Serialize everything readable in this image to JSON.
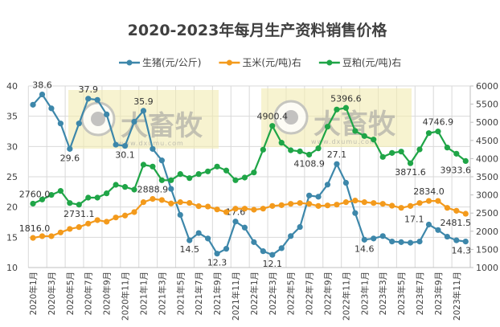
{
  "chart_data": {
    "type": "line",
    "title": "2020-2023年每月生产资料销售价格",
    "x": [
      "2020年1月",
      "2020年2月",
      "2020年3月",
      "2020年4月",
      "2020年5月",
      "2020年6月",
      "2020年7月",
      "2020年8月",
      "2020年9月",
      "2020年10月",
      "2020年11月",
      "2020年12月",
      "2021年1月",
      "2021年2月",
      "2021年3月",
      "2021年4月",
      "2021年5月",
      "2021年6月",
      "2021年7月",
      "2021年8月",
      "2021年9月",
      "2021年10月",
      "2021年11月",
      "2021年12月",
      "2022年1月",
      "2022年2月",
      "2022年3月",
      "2022年4月",
      "2022年5月",
      "2022年6月",
      "2022年7月",
      "2022年8月",
      "2022年9月",
      "2022年10月",
      "2022年11月",
      "2022年12月",
      "2023年1月",
      "2023年2月",
      "2023年3月",
      "2023年4月",
      "2023年5月",
      "2023年6月",
      "2023年7月",
      "2023年8月",
      "2023年9月",
      "2023年10月",
      "2023年11月",
      "2023年12月"
    ],
    "x_tick_step": 2,
    "left_axis": {
      "ylim": [
        10,
        40
      ],
      "ticks": [
        10,
        15,
        20,
        25,
        30,
        35,
        40
      ]
    },
    "right_axis": {
      "ylim": [
        1000,
        6000
      ],
      "ticks": [
        1000,
        1500,
        2000,
        2500,
        3000,
        3500,
        4000,
        4500,
        5000,
        5500,
        6000
      ]
    },
    "grid": true,
    "legend": "top",
    "series": [
      {
        "name": "生猪(元/公斤)",
        "axis": "left",
        "color": "#3D87AA",
        "values": [
          36.9,
          38.6,
          36.3,
          33.8,
          29.6,
          33.8,
          37.9,
          37.7,
          35.3,
          30.3,
          30.1,
          34.1,
          35.9,
          29.6,
          27.7,
          23.0,
          18.7,
          14.5,
          15.7,
          14.8,
          12.3,
          13.1,
          17.6,
          16.6,
          14.2,
          12.7,
          12.1,
          13.2,
          15.2,
          16.7,
          21.9,
          21.7,
          23.7,
          27.1,
          24.0,
          19.0,
          14.6,
          14.8,
          15.2,
          14.3,
          14.2,
          14.1,
          14.3,
          17.1,
          16.2,
          15.1,
          14.5,
          14.3
        ],
        "labels": [
          {
            "i": 1,
            "text": "38.6",
            "pos": "above"
          },
          {
            "i": 4,
            "text": "29.6",
            "pos": "below"
          },
          {
            "i": 6,
            "text": "37.9",
            "pos": "above"
          },
          {
            "i": 10,
            "text": "30.1",
            "pos": "below"
          },
          {
            "i": 12,
            "text": "35.9",
            "pos": "above"
          },
          {
            "i": 17,
            "text": "14.5",
            "pos": "below"
          },
          {
            "i": 20,
            "text": "12.3",
            "pos": "below"
          },
          {
            "i": 22,
            "text": "17.6",
            "pos": "above"
          },
          {
            "i": 26,
            "text": "12.1",
            "pos": "below"
          },
          {
            "i": 33,
            "text": "27.1",
            "pos": "above"
          },
          {
            "i": 36,
            "text": "14.6",
            "pos": "below"
          },
          {
            "i": 43,
            "text": "17.1",
            "pos": "left"
          },
          {
            "i": 47,
            "text": "14.3",
            "pos": "below"
          }
        ]
      },
      {
        "name": "玉米(元/吨)右",
        "axis": "right",
        "color": "#F39A1C",
        "values": [
          1816.0,
          1864,
          1864,
          1967,
          2063,
          2114,
          2210,
          2306,
          2262,
          2379,
          2432,
          2527,
          2800,
          2888.9,
          2860,
          2764,
          2800,
          2780,
          2690,
          2680,
          2600,
          2527,
          2620,
          2622,
          2593,
          2622,
          2696,
          2718,
          2755,
          2777,
          2755,
          2696,
          2711,
          2733,
          2800,
          2844,
          2800,
          2777,
          2755,
          2703,
          2644,
          2696,
          2777,
          2834.0,
          2834,
          2644,
          2563,
          2481.5
        ],
        "labels": [
          {
            "i": 0,
            "text": "1816.0",
            "pos": "above"
          },
          {
            "i": 13,
            "text": "2888.9",
            "pos": "above"
          },
          {
            "i": 43,
            "text": "2834.0",
            "pos": "above"
          },
          {
            "i": 47,
            "text": "2481.5",
            "pos": "below"
          }
        ]
      },
      {
        "name": "豆粕(元/吨)右",
        "axis": "right",
        "color": "#1FA547",
        "values": [
          2760.0,
          2874,
          3000,
          3110,
          2777,
          2731.1,
          2925,
          2925,
          3043,
          3279,
          3220,
          3146,
          3832,
          3781,
          3405,
          3405,
          3574,
          3463,
          3574,
          3648,
          3781,
          3671,
          3405,
          3478,
          3618,
          4245,
          4900.4,
          4437,
          4230,
          4200,
          4108.9,
          4282,
          4879,
          5351,
          5396.6,
          4761,
          4621,
          4525,
          4046,
          4156,
          4193,
          3871.6,
          4252,
          4702,
          4746.9,
          4304,
          4134,
          3933.6
        ],
        "labels": [
          {
            "i": 0,
            "text": "2760.0",
            "pos": "above"
          },
          {
            "i": 5,
            "text": "2731.1",
            "pos": "below"
          },
          {
            "i": 26,
            "text": "4900.4",
            "pos": "above"
          },
          {
            "i": 30,
            "text": "4108.9",
            "pos": "below"
          },
          {
            "i": 34,
            "text": "5396.6",
            "pos": "above"
          },
          {
            "i": 41,
            "text": "3871.6",
            "pos": "below"
          },
          {
            "i": 44,
            "text": "4746.9",
            "pos": "above"
          },
          {
            "i": 47,
            "text": "3933.6",
            "pos": "below"
          }
        ]
      }
    ]
  },
  "watermark": {
    "brand": "大畜牧",
    "url": "www.dxumu.com"
  }
}
